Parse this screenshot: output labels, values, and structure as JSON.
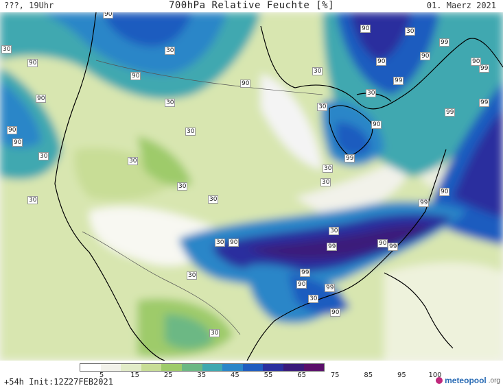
{
  "header": {
    "left": "???, 19Uhr",
    "title": "700hPa Relative Feuchte [%]",
    "date": "01. Maerz 2021"
  },
  "footer": {
    "init": "+54h  Init:12Z27FEB2021",
    "logo_name": "meteopool",
    "logo_tld": ".org"
  },
  "legend": {
    "ticks": [
      "5",
      "15",
      "25",
      "35",
      "45",
      "55",
      "65",
      "75",
      "85",
      "95",
      "100"
    ],
    "colors": [
      "#ffffff",
      "#f2f2ea",
      "#e2ecc8",
      "#c8dd96",
      "#9ecb6a",
      "#6cb884",
      "#3fa8b0",
      "#2a86c8",
      "#1f5cbf",
      "#2a2f9e",
      "#3a1a7a",
      "#5a0f6a"
    ]
  },
  "map_labels": {
    "l1": "90",
    "l2": "30",
    "l3": "90",
    "l4": "30",
    "l5": "90",
    "l6": "30",
    "l7": "90",
    "l8": "90",
    "l9": "30",
    "l10": "90",
    "l11": "30",
    "l12": "90",
    "l13": "90",
    "l14": "99",
    "l15": "90",
    "l16": "30",
    "l17": "90",
    "l18": "30",
    "l19": "99",
    "l20": "99",
    "l21": "99",
    "l22": "90",
    "l23": "30",
    "l24": "99",
    "l25": "30",
    "l26": "30",
    "l27": "30",
    "l28": "90",
    "l29": "30",
    "l30": "30",
    "l31": "90",
    "l32": "99",
    "l33": "99",
    "l34": "90",
    "l35": "99",
    "l36": "99",
    "l37": "90",
    "l38": "30",
    "l39": "99",
    "l40": "30",
    "l41": "90",
    "l42": "30",
    "l43": "30",
    "l44": "30",
    "l45": "30",
    "l46": "90",
    "l47": "99",
    "l48": "30"
  }
}
